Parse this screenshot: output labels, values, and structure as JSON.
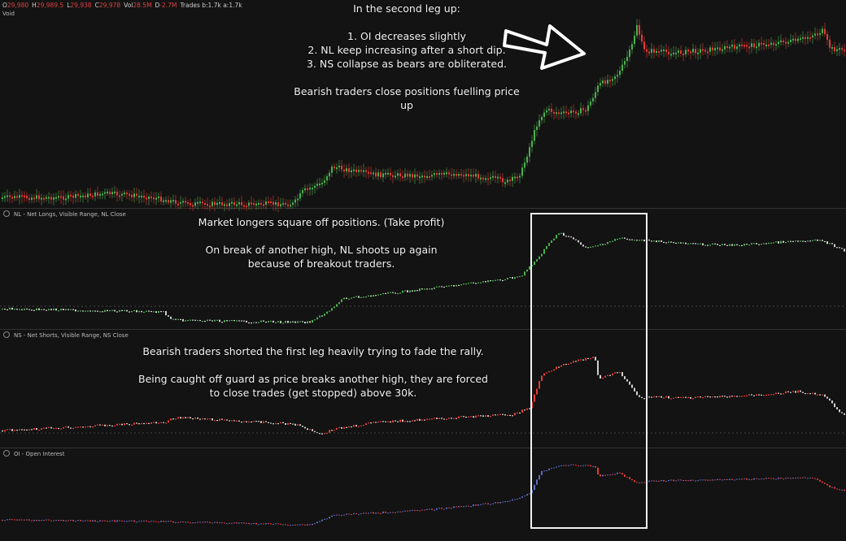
{
  "header": {
    "open_label": "O",
    "open": "29,980",
    "high_label": "H",
    "high": "29,989.5",
    "low_label": "L",
    "low": "29,938",
    "close_label": "C",
    "close": "29,978",
    "vol_label": "Vol",
    "vol": "28.5M",
    "delta_label": "D",
    "delta": "-2.7M",
    "trades": "Trades b:1.7k a:1.7k",
    "void": "Void"
  },
  "panes": {
    "nl": {
      "label": "NL - Net Longs, Visible Range, NL Close"
    },
    "ns": {
      "label": "NS - Net Shorts, Visible Range, NS Close"
    },
    "oi": {
      "label": "OI - Open Interest"
    }
  },
  "annotations": {
    "top": "In the second leg up:\n\n1. OI decreases slightly\n2. NL keep increasing after a short dip.\n3. NS collapse as bears are obliterated.\n\nBearish traders close positions fuelling price\nup",
    "nl": "Market longers square off positions. (Take profit)\n\nOn break of another high, NL shoots up again\nbecause of breakout traders.",
    "ns": "Bearish traders shorted the first leg heavily trying to fade the rally.\n\nBeing caught off guard as price breaks another high, they are forced\nto close trades (get stopped) above 30k."
  },
  "colors": {
    "background": "#131313",
    "up": "#4caf50",
    "down": "#e53935",
    "neutral": "#cfcfcf",
    "oi_up": "#5c6bc0",
    "oi_down": "#e53935"
  },
  "icons": {
    "arrow": "right-arrow-icon",
    "settings": "gear-icon"
  }
}
